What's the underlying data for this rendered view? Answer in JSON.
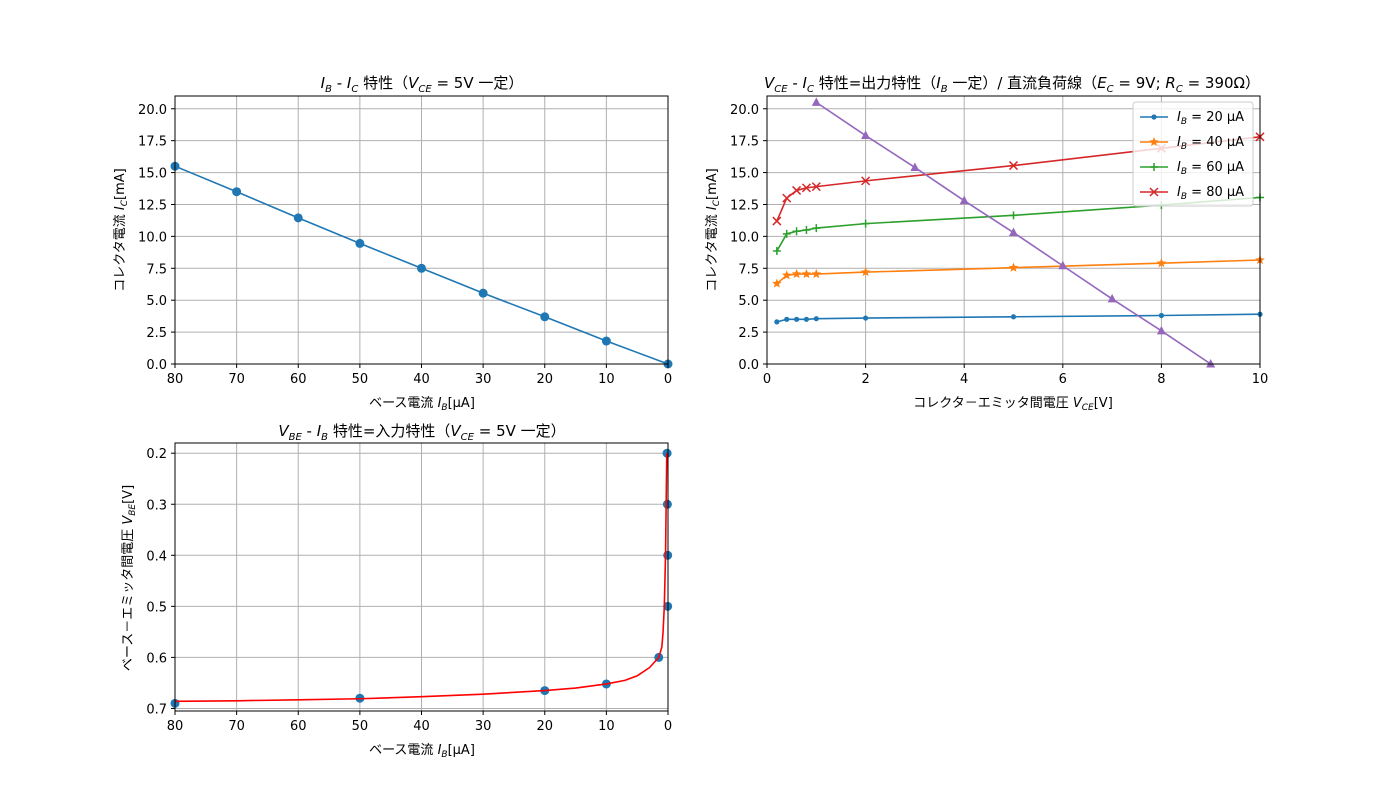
{
  "chart_data": [
    {
      "type": "line",
      "title": "I_B - I_C 特性（V_CE = 5V 一定）",
      "title_parts": {
        "lead": "I",
        "lead_sub": "B",
        "mid1": " - ",
        "var2": "I",
        "var2_sub": "C",
        "mid2": " 特性（",
        "var3": "V",
        "var3_sub": "CE",
        "tail": " = 5V 一定）"
      },
      "xlabel": "ベース電流 I_B[μA]",
      "xlabel_parts": {
        "text": "ベース電流 ",
        "var": "I",
        "sub": "B",
        "unit": "[μA]"
      },
      "ylabel": "コレクタ電流 I_C[mA]",
      "ylabel_parts": {
        "text": "コレクタ電流 ",
        "var": "I",
        "sub": "C",
        "unit": "[mA]"
      },
      "xlim": [
        80,
        0
      ],
      "ylim": [
        0,
        21
      ],
      "x_inverted": true,
      "xticks": [
        80,
        70,
        60,
        50,
        40,
        30,
        20,
        10,
        0
      ],
      "yticks": [
        0.0,
        2.5,
        5.0,
        7.5,
        10.0,
        12.5,
        15.0,
        17.5,
        20.0
      ],
      "ytick_labels": [
        "0.0",
        "2.5",
        "5.0",
        "7.5",
        "10.0",
        "12.5",
        "15.0",
        "17.5",
        "20.0"
      ],
      "grid": true,
      "series": [
        {
          "x": [
            80,
            70,
            60,
            50,
            40,
            30,
            20,
            10,
            0
          ],
          "y": [
            15.5,
            13.5,
            11.45,
            9.45,
            7.5,
            5.55,
            3.7,
            1.8,
            0.0
          ],
          "color": "#1f77b4",
          "marker": "circle"
        }
      ]
    },
    {
      "type": "line",
      "title": "V_CE - I_C 特性=出力特性（I_B 一定）/ 直流負荷線（E_C = 9V; R_C = 390Ω）",
      "title_parts": {
        "v1": "V",
        "v1_sub": "CE",
        "s1": " - ",
        "v2": "I",
        "v2_sub": "C",
        "s2": " 特性=出力特性（",
        "v3": "I",
        "v3_sub": "B",
        "s3": " 一定）/ 直流負荷線（",
        "v4": "E",
        "v4_sub": "C",
        "s4": " = 9V; ",
        "v5": "R",
        "v5_sub": "C",
        "s5": " = 390Ω）"
      },
      "xlabel": "コレクタ－エミッタ間電圧 V_CE[V]",
      "xlabel_parts": {
        "text": "コレクタ－エミッタ間電圧 ",
        "var": "V",
        "sub": "CE",
        "unit": "[V]"
      },
      "ylabel": "コレクタ電流 I_C[mA]",
      "ylabel_parts": {
        "text": "コレクタ電流 ",
        "var": "I",
        "sub": "C",
        "unit": "[mA]"
      },
      "xlim": [
        0,
        10
      ],
      "ylim": [
        0,
        21
      ],
      "xticks": [
        0,
        2,
        4,
        6,
        8,
        10
      ],
      "yticks": [
        0.0,
        2.5,
        5.0,
        7.5,
        10.0,
        12.5,
        15.0,
        17.5,
        20.0
      ],
      "ytick_labels": [
        "0.0",
        "2.5",
        "5.0",
        "7.5",
        "10.0",
        "12.5",
        "15.0",
        "17.5",
        "20.0"
      ],
      "grid": true,
      "legend_position": "top-right",
      "series": [
        {
          "name": "I_B = 20 μA",
          "legend_var": "I",
          "legend_sub": "B",
          "legend_rest": " = 20 μA",
          "color": "#1f77b4",
          "marker": "point",
          "x": [
            0.2,
            0.4,
            0.6,
            0.8,
            1,
            2,
            5,
            8,
            10
          ],
          "y": [
            3.3,
            3.5,
            3.5,
            3.5,
            3.55,
            3.6,
            3.7,
            3.8,
            3.9
          ]
        },
        {
          "name": "I_B = 40 μA",
          "legend_var": "I",
          "legend_sub": "B",
          "legend_rest": " = 40 μA",
          "color": "#ff7f0e",
          "marker": "star",
          "x": [
            0.2,
            0.4,
            0.6,
            0.8,
            1,
            2,
            5,
            8,
            10
          ],
          "y": [
            6.3,
            6.95,
            7.05,
            7.05,
            7.05,
            7.2,
            7.55,
            7.9,
            8.15
          ]
        },
        {
          "name": "I_B = 60 μA",
          "legend_var": "I",
          "legend_sub": "B",
          "legend_rest": " = 60 μA",
          "color": "#2ca02c",
          "marker": "plus",
          "x": [
            0.2,
            0.4,
            0.6,
            0.8,
            1,
            2,
            5,
            8,
            10
          ],
          "y": [
            8.85,
            10.2,
            10.4,
            10.5,
            10.65,
            11.0,
            11.65,
            12.45,
            13.05
          ]
        },
        {
          "name": "I_B = 80 μA",
          "legend_var": "I",
          "legend_sub": "B",
          "legend_rest": " = 80 μA",
          "color": "#d62728",
          "marker": "x",
          "x": [
            0.2,
            0.4,
            0.6,
            0.8,
            1,
            2,
            5,
            8,
            10
          ],
          "y": [
            11.2,
            13.0,
            13.6,
            13.8,
            13.9,
            14.35,
            15.55,
            16.9,
            17.8
          ]
        },
        {
          "color": "#9467bd",
          "marker": "triangle",
          "x": [
            1,
            2,
            3,
            4,
            5,
            6,
            7,
            8,
            9
          ],
          "y": [
            20.5,
            17.9,
            15.4,
            12.8,
            10.3,
            7.7,
            5.1,
            2.6,
            0.0
          ]
        }
      ]
    },
    {
      "type": "line",
      "title": "V_BE - I_B 特性=入力特性（V_CE = 5V 一定）",
      "title_parts": {
        "v1": "V",
        "v1_sub": "BE",
        "s1": " - ",
        "v2": "I",
        "v2_sub": "B",
        "s2": " 特性=入力特性（",
        "v3": "V",
        "v3_sub": "CE",
        "s3": " = 5V 一定）"
      },
      "xlabel": "ベース電流 I_B[μA]",
      "xlabel_parts": {
        "text": "ベース電流 ",
        "var": "I",
        "sub": "B",
        "unit": "[μA]"
      },
      "ylabel": "ベース－エミッタ間電圧 V_BE[V]",
      "ylabel_parts": {
        "text": "ベース－エミッタ間電圧 ",
        "var": "V",
        "sub": "BE",
        "unit": "[V]"
      },
      "xlim": [
        80,
        0
      ],
      "ylim": [
        0.705,
        0.18
      ],
      "x_inverted": true,
      "y_inverted": true,
      "xticks": [
        80,
        70,
        60,
        50,
        40,
        30,
        20,
        10,
        0
      ],
      "yticks": [
        0.2,
        0.3,
        0.4,
        0.5,
        0.6,
        0.7
      ],
      "ytick_labels": [
        "0.2",
        "0.3",
        "0.4",
        "0.5",
        "0.6",
        "0.7"
      ],
      "grid": true,
      "series": [
        {
          "color": "#1f77b4",
          "marker": "circle",
          "line": false,
          "x": [
            80,
            50,
            20,
            10,
            1.5,
            0.05,
            0.05,
            0.1,
            0.15
          ],
          "y": [
            0.69,
            0.68,
            0.665,
            0.652,
            0.6,
            0.5,
            0.4,
            0.3,
            0.2
          ]
        },
        {
          "color": "#ff0000",
          "marker": "none",
          "line": true,
          "x": [
            80,
            70,
            60,
            50,
            40,
            30,
            20,
            15,
            10,
            7,
            5,
            3,
            1.5,
            1,
            0.8,
            0.6,
            0.5,
            0.4,
            0.3,
            0.2
          ],
          "y": [
            0.686,
            0.685,
            0.683,
            0.681,
            0.677,
            0.672,
            0.665,
            0.66,
            0.652,
            0.645,
            0.636,
            0.62,
            0.6,
            0.58,
            0.55,
            0.5,
            0.45,
            0.4,
            0.3,
            0.2
          ]
        }
      ]
    }
  ]
}
